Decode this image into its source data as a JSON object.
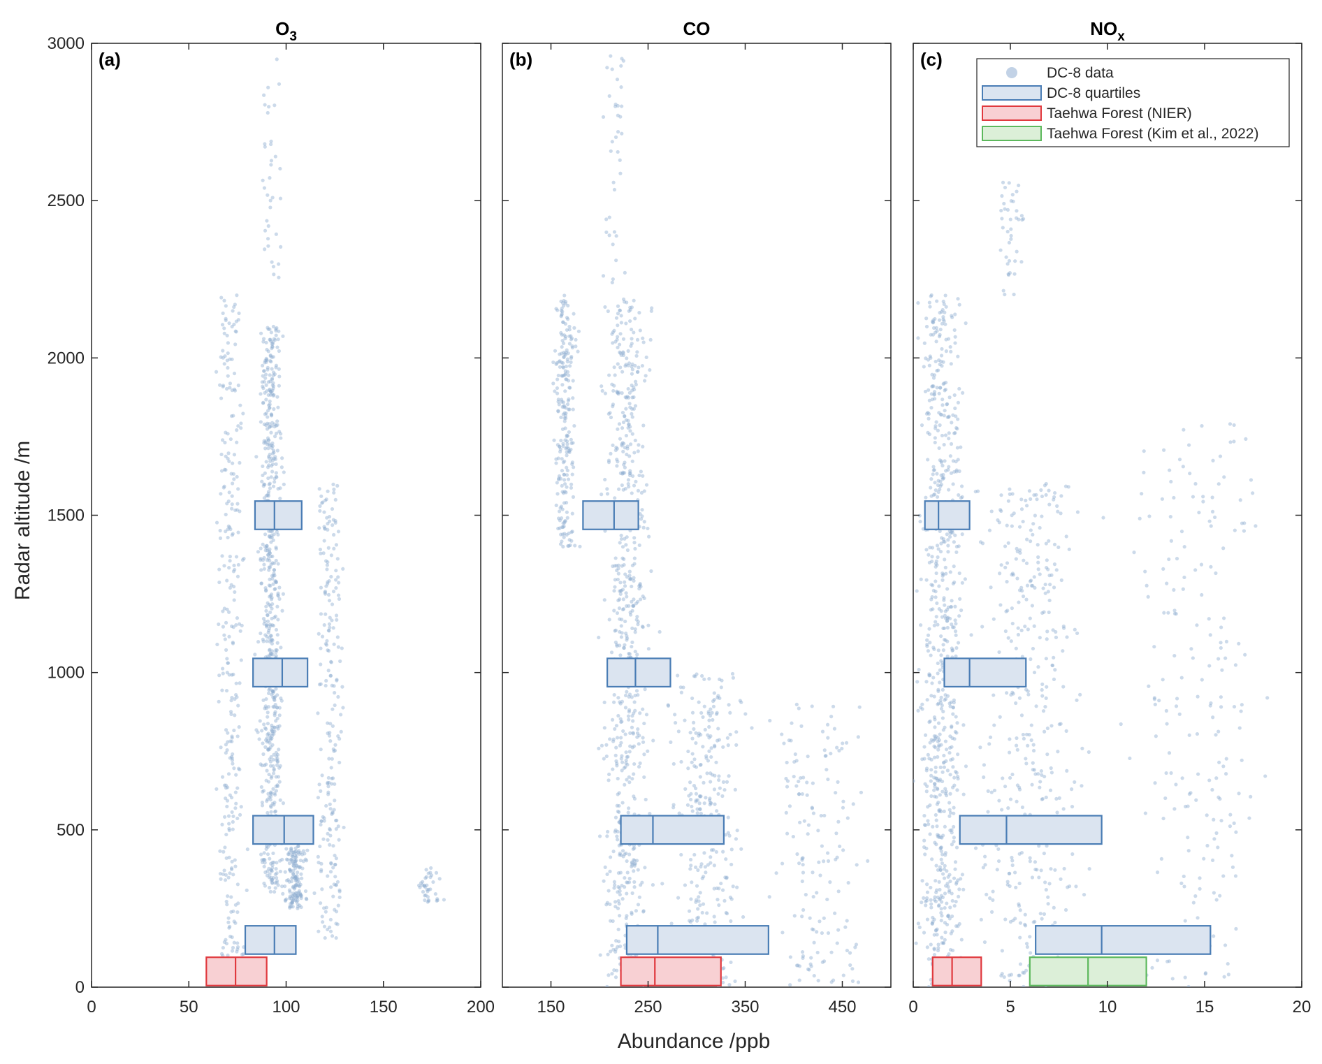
{
  "chart_data": {
    "type": "scatter",
    "xlabel": "Abundance /ppb",
    "ylabel": "Radar altitude /m",
    "ylim": [
      0,
      3000
    ],
    "yticks": [
      0,
      500,
      1000,
      1500,
      2000,
      2500,
      3000
    ],
    "grid": false,
    "legend_position": "top-right (panel c)",
    "colors": {
      "dc8": "#4a7db5",
      "dc8_fill": "#dbe4f0",
      "nier": "#e0393e",
      "nier_fill": "#f8d0d3",
      "kim": "#5cb85c",
      "kim_fill": "#dcefd8"
    },
    "legend": [
      {
        "key": "dc8_data",
        "label": "DC-8 data",
        "style": "dot"
      },
      {
        "key": "dc8_quartiles",
        "label": "DC-8 quartiles",
        "style": "box-blue"
      },
      {
        "key": "nier",
        "label": "Taehwa Forest (NIER)",
        "style": "box-red"
      },
      {
        "key": "kim",
        "label": "Taehwa Forest (Kim et al., 2022)",
        "style": "box-green"
      }
    ],
    "panels": [
      {
        "id": "a",
        "label": "(a)",
        "title_main": "O",
        "title_sub": "3",
        "xlim": [
          0,
          200
        ],
        "xticks": [
          0,
          50,
          100,
          150,
          200
        ],
        "dc8_quartiles": [
          {
            "alt_range": [
              1455,
              1545
            ],
            "q1": 84,
            "median": 94,
            "q3": 108
          },
          {
            "alt_range": [
              955,
              1045
            ],
            "q1": 83,
            "median": 98,
            "q3": 111
          },
          {
            "alt_range": [
              455,
              545
            ],
            "q1": 83,
            "median": 99,
            "q3": 114
          },
          {
            "alt_range": [
              105,
              195
            ],
            "q1": 79,
            "median": 94,
            "q3": 105
          }
        ],
        "surface_boxes": [
          {
            "source": "nier",
            "alt_range": [
              5,
              95
            ],
            "q1": 59,
            "median": 74,
            "q3": 90
          }
        ],
        "scatter_clusters": [
          {
            "x": [
              84,
              100
            ],
            "y": [
              300,
              2100
            ],
            "w": 18
          },
          {
            "x": [
              63,
              80
            ],
            "y": [
              0,
              2200
            ],
            "w": 8
          },
          {
            "x": [
              113,
              132
            ],
            "y": [
              150,
              1600
            ],
            "w": 6
          },
          {
            "x": [
              98,
              112
            ],
            "y": [
              250,
              450
            ],
            "w": 4
          },
          {
            "x": [
              166,
              181
            ],
            "y": [
              270,
              380
            ],
            "w": 1
          },
          {
            "x": [
              85,
              100
            ],
            "y": [
              2200,
              2960
            ],
            "w": 1
          }
        ]
      },
      {
        "id": "b",
        "label": "(b)",
        "title_main": "CO",
        "title_sub": "",
        "xlim": [
          100,
          500
        ],
        "xticks": [
          150,
          250,
          350,
          450
        ],
        "dc8_quartiles": [
          {
            "alt_range": [
              1455,
              1545
            ],
            "q1": 183,
            "median": 215,
            "q3": 240
          },
          {
            "alt_range": [
              955,
              1045
            ],
            "q1": 208,
            "median": 237,
            "q3": 273
          },
          {
            "alt_range": [
              455,
              545
            ],
            "q1": 222,
            "median": 255,
            "q3": 328
          },
          {
            "alt_range": [
              105,
              195
            ],
            "q1": 228,
            "median": 260,
            "q3": 374
          }
        ],
        "surface_boxes": [
          {
            "source": "nier",
            "alt_range": [
              5,
              95
            ],
            "q1": 222,
            "median": 257,
            "q3": 325
          }
        ],
        "scatter_clusters": [
          {
            "x": [
              195,
              260
            ],
            "y": [
              0,
              2200
            ],
            "w": 18
          },
          {
            "x": [
              150,
              180
            ],
            "y": [
              1400,
              2200
            ],
            "w": 6
          },
          {
            "x": [
              260,
              360
            ],
            "y": [
              0,
              1000
            ],
            "w": 8
          },
          {
            "x": [
              360,
              490
            ],
            "y": [
              0,
              900
            ],
            "w": 4
          },
          {
            "x": [
              200,
              230
            ],
            "y": [
              2200,
              2960
            ],
            "w": 1
          }
        ]
      },
      {
        "id": "c",
        "label": "(c)",
        "title_main": "NO",
        "title_sub": "x",
        "xlim": [
          0,
          20
        ],
        "xticks": [
          0,
          5,
          10,
          15,
          20
        ],
        "dc8_quartiles": [
          {
            "alt_range": [
              1455,
              1545
            ],
            "q1": 0.6,
            "median": 1.3,
            "q3": 2.9
          },
          {
            "alt_range": [
              955,
              1045
            ],
            "q1": 1.6,
            "median": 2.9,
            "q3": 5.8
          },
          {
            "alt_range": [
              455,
              545
            ],
            "q1": 2.4,
            "median": 4.8,
            "q3": 9.7
          },
          {
            "alt_range": [
              105,
              195
            ],
            "q1": 6.3,
            "median": 9.7,
            "q3": 15.3
          }
        ],
        "surface_boxes": [
          {
            "source": "nier",
            "alt_range": [
              5,
              95
            ],
            "q1": 1.0,
            "median": 2.0,
            "q3": 3.5
          },
          {
            "source": "kim",
            "alt_range": [
              5,
              95
            ],
            "q1": 6.0,
            "median": 9.0,
            "q3": 12.0
          }
        ],
        "scatter_clusters": [
          {
            "x": [
              0,
              3
            ],
            "y": [
              0,
              2200
            ],
            "w": 18
          },
          {
            "x": [
              2,
              10
            ],
            "y": [
              0,
              1600
            ],
            "w": 10
          },
          {
            "x": [
              10,
              19.5
            ],
            "y": [
              0,
              1800
            ],
            "w": 5
          },
          {
            "x": [
              4,
              6
            ],
            "y": [
              2200,
              2560
            ],
            "w": 1
          }
        ]
      }
    ]
  }
}
